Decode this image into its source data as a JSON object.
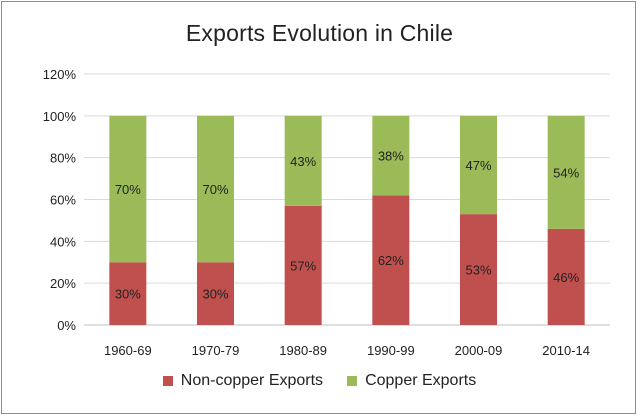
{
  "chart_data": {
    "type": "bar",
    "stacked": true,
    "title": "Exports Evolution in Chile",
    "categories": [
      "1960-69",
      "1970-79",
      "1980-89",
      "1990-99",
      "2000-09",
      "2010-14"
    ],
    "series": [
      {
        "name": "Non-copper Exports",
        "color": "#c0504d",
        "values": [
          30,
          30,
          57,
          62,
          53,
          46
        ],
        "labels": [
          "30%",
          "30%",
          "57%",
          "62%",
          "53%",
          "46%"
        ]
      },
      {
        "name": "Copper Exports",
        "color": "#9bbb59",
        "values": [
          70,
          70,
          43,
          38,
          47,
          54
        ],
        "labels": [
          "70%",
          "70%",
          "43%",
          "38%",
          "47%",
          "54%"
        ]
      }
    ],
    "ylim": [
      0,
      120
    ],
    "yticks": [
      "0%",
      "20%",
      "40%",
      "60%",
      "80%",
      "100%",
      "120%"
    ],
    "grid": true,
    "legend_position": "bottom"
  }
}
